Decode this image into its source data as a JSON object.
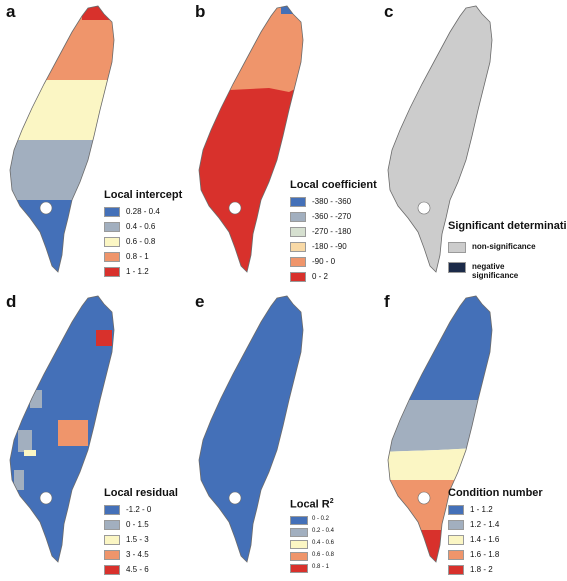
{
  "panels": [
    {
      "label": "a",
      "legend": {
        "title": "Local intercept",
        "items": [
          {
            "color": "#4470b8",
            "text": "0.28 - 0.4"
          },
          {
            "color": "#a2afbf",
            "text": "0.4 - 0.6"
          },
          {
            "color": "#fbf6c4",
            "text": "0.6 - 0.8"
          },
          {
            "color": "#ef956b",
            "text": "0.8 - 1"
          },
          {
            "color": "#d8312c",
            "text": "1 - 1.2"
          }
        ]
      }
    },
    {
      "label": "b",
      "legend": {
        "title": "Local coefficient",
        "items": [
          {
            "color": "#4470b8",
            "text": "-380 - -360"
          },
          {
            "color": "#a2afbf",
            "text": "-360 - -270"
          },
          {
            "color": "#d6e0d0",
            "text": "-270 - -180"
          },
          {
            "color": "#f8d9a6",
            "text": "-180 - -90"
          },
          {
            "color": "#ef956b",
            "text": "-90 - 0"
          },
          {
            "color": "#d8312c",
            "text": "0 - 2"
          }
        ]
      }
    },
    {
      "label": "c",
      "legend": {
        "title": "Significant determination",
        "items": [
          {
            "color": "#cccccc",
            "text": "non-significance"
          },
          {
            "color": "#1b2a48",
            "text": "negative significance"
          }
        ]
      }
    },
    {
      "label": "d",
      "legend": {
        "title": "Local residual",
        "items": [
          {
            "color": "#4470b8",
            "text": "-1.2 - 0"
          },
          {
            "color": "#a2afbf",
            "text": "0 - 1.5"
          },
          {
            "color": "#fbf6c4",
            "text": "1.5 - 3"
          },
          {
            "color": "#ef956b",
            "text": "3 - 4.5"
          },
          {
            "color": "#d8312c",
            "text": "4.5 - 6"
          }
        ]
      }
    },
    {
      "label": "e",
      "legend": {
        "title": "Local R",
        "title_sup": "2",
        "items": [
          {
            "color": "#4470b8",
            "text": "0 - 0.2"
          },
          {
            "color": "#a2afbf",
            "text": "0.2 - 0.4"
          },
          {
            "color": "#fbf6c4",
            "text": "0.4 - 0.6"
          },
          {
            "color": "#ef956b",
            "text": "0.6 - 0.8"
          },
          {
            "color": "#d8312c",
            "text": "0.8 - 1"
          }
        ]
      }
    },
    {
      "label": "f",
      "legend": {
        "title": "Condition number",
        "items": [
          {
            "color": "#4470b8",
            "text": "1 - 1.2"
          },
          {
            "color": "#a2afbf",
            "text": "1.2 - 1.4"
          },
          {
            "color": "#fbf6c4",
            "text": "1.4 - 1.6"
          },
          {
            "color": "#ef956b",
            "text": "1.6 - 1.8"
          },
          {
            "color": "#d8312c",
            "text": "1.8 - 2"
          }
        ]
      }
    }
  ]
}
